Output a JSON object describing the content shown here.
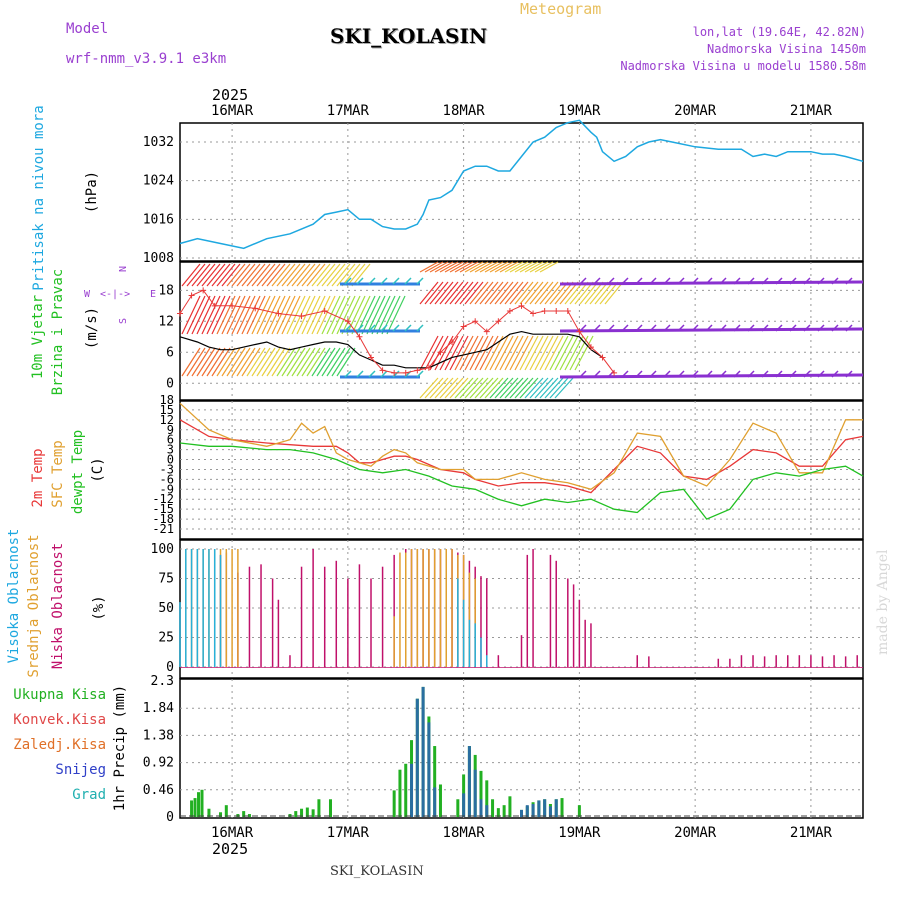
{
  "header": {
    "model_label": "Model",
    "model_name": "wrf-nmm_v3.9.1 e3km",
    "title": "Meteogram",
    "station": "SKI_KOLASIN",
    "lonlat": "lon,lat (19.64E, 42.82N)",
    "altitude": "Nadmorska Visina 1450m",
    "model_altitude": "Nadmorska Visina u modelu 1580.58m",
    "footer_station": "SKI_KOLASIN",
    "watermark": "made by Angel"
  },
  "colors": {
    "pressure": "#1ea8e0",
    "temp2m": "#e83838",
    "sfc": "#e0a030",
    "dewpt": "#22c022",
    "wind_speed": "#000000",
    "gust": "#e83838",
    "high_cloud": "#28b0d8",
    "mid_cloud": "#e0a030",
    "low_cloud": "#c0106a",
    "total_precip": "#22b022",
    "conv_precip": "#e04848",
    "frz_precip": "#e07028",
    "snow": "#3040c8",
    "graupel": "#20b0b0",
    "purple": "#9a40d0"
  },
  "top_axis": {
    "year": "2025",
    "dates": [
      "16MAR",
      "17MAR",
      "18MAR",
      "19MAR",
      "20MAR",
      "21MAR"
    ]
  },
  "bottom_axis": {
    "year": "2025",
    "dates": [
      "16MAR",
      "17MAR",
      "18MAR",
      "19MAR",
      "20MAR",
      "21MAR"
    ]
  },
  "panels": {
    "pressure": {
      "label": "Pritisak na nivou mora",
      "unit": "(hPa)"
    },
    "wind": {
      "label1": "10m Vjetar",
      "label2": "Brzina i Pravac",
      "unit": "(m/s)",
      "compass_n": "N",
      "compass_w": "W",
      "compass_e": "E",
      "compass_s": "S",
      "compass_arrows": "<-|->"
    },
    "temp": {
      "label1": "2m Temp",
      "label2": "SFC Temp",
      "label3": "dewpt Temp",
      "unit": "(C)"
    },
    "cloud": {
      "label1": "Visoka Oblacnost",
      "label2": "Srednja Oblacnost",
      "label3": "Niska Oblacnost",
      "unit": "(%)"
    },
    "precip": {
      "label": "1hr Precip (mm)",
      "legend": [
        "Ukupna Kisa",
        "Konvek.Kisa",
        "Zaledj.Kisa",
        "Snijeg",
        "Grad"
      ]
    }
  },
  "chart_data": [
    {
      "type": "line",
      "title": "Pritisak na nivou mora",
      "ylabel": "(hPa)",
      "x_unit": "days since 16MAR 00UTC",
      "xlim": [
        -0.45,
        5.45
      ],
      "ylim": [
        1008,
        1038
      ],
      "yticks": [
        "1008",
        "1016",
        "1024",
        "1032"
      ],
      "series": [
        {
          "name": "MSLP",
          "x": [
            -0.45,
            -0.3,
            -0.1,
            0.1,
            0.3,
            0.5,
            0.7,
            0.8,
            0.9,
            1.0,
            1.1,
            1.2,
            1.3,
            1.4,
            1.5,
            1.6,
            1.65,
            1.7,
            1.8,
            1.9,
            2.0,
            2.1,
            2.2,
            2.3,
            2.4,
            2.5,
            2.6,
            2.7,
            2.8,
            2.9,
            3.0,
            3.1,
            3.15,
            3.2,
            3.3,
            3.4,
            3.5,
            3.6,
            3.7,
            3.8,
            4.0,
            4.2,
            4.4,
            4.5,
            4.6,
            4.7,
            4.8,
            4.9,
            5.0,
            5.1,
            5.2,
            5.3,
            5.45
          ],
          "y": [
            1011,
            1012,
            1011,
            1010,
            1012,
            1013,
            1015,
            1017,
            1017.5,
            1018,
            1016,
            1016,
            1014.5,
            1014,
            1014,
            1015,
            1017,
            1020,
            1020.5,
            1022,
            1026,
            1027,
            1027,
            1026,
            1026,
            1029,
            1032,
            1033,
            1035,
            1036,
            1036.5,
            1034,
            1033,
            1030,
            1028,
            1029,
            1031,
            1032,
            1032.5,
            1032,
            1031,
            1030.5,
            1030.5,
            1029,
            1029.5,
            1029,
            1030,
            1030,
            1030,
            1029.5,
            1029.5,
            1029,
            1028
          ]
        }
      ]
    },
    {
      "type": "line",
      "title": "10m Vjetar Brzina i Pravac",
      "ylabel": "(m/s)",
      "x_unit": "days since 16MAR 00UTC",
      "xlim": [
        -0.45,
        5.45
      ],
      "ylim": [
        -1.5,
        20
      ],
      "yticks": [
        "0",
        "6",
        "12",
        "18"
      ],
      "series": [
        {
          "name": "wind speed",
          "x": [
            -0.45,
            -0.3,
            -0.2,
            -0.1,
            0,
            0.1,
            0.2,
            0.3,
            0.4,
            0.5,
            0.6,
            0.7,
            0.8,
            0.9,
            1.0,
            1.1,
            1.2,
            1.25,
            1.3,
            1.4,
            1.5,
            1.55,
            1.6,
            1.7,
            1.8,
            1.9,
            2.0,
            2.1,
            2.2,
            2.3,
            2.4,
            2.5,
            2.6,
            2.7,
            2.8,
            2.9,
            3.0,
            3.1,
            3.2
          ],
          "y": [
            9,
            8,
            7,
            6.5,
            6.5,
            7,
            7.5,
            8,
            7,
            6.5,
            7,
            7.5,
            8,
            8,
            7.5,
            5.5,
            4.5,
            4,
            3.5,
            3.5,
            3,
            3,
            3,
            3,
            4,
            5,
            5.5,
            6,
            6.5,
            8,
            9.5,
            10,
            9.5,
            9.5,
            9.5,
            9.5,
            9,
            6.5,
            5
          ]
        },
        {
          "name": "gust",
          "x": [
            -0.45,
            -0.35,
            -0.25,
            -0.15,
            0,
            0.2,
            0.4,
            0.6,
            0.8,
            1.0,
            1.1,
            1.2,
            1.3,
            1.4,
            1.5,
            1.6,
            1.7,
            1.8,
            1.9,
            2.0,
            2.1,
            2.2,
            2.3,
            2.4,
            2.5,
            2.6,
            2.7,
            2.8,
            2.9,
            3.0,
            3.1,
            3.2,
            3.3
          ],
          "y": [
            13.5,
            17,
            18,
            15,
            15,
            14.5,
            13.5,
            13,
            14,
            12,
            9,
            5,
            2.5,
            2,
            2,
            2.5,
            3,
            6,
            8,
            11,
            12,
            10,
            12,
            14,
            15,
            13.5,
            14,
            14,
            14,
            10,
            7,
            5,
            2
          ]
        }
      ]
    },
    {
      "type": "line",
      "title": "2m Temp / SFC Temp / dewpt Temp",
      "ylabel": "(C)",
      "x_unit": "days since 16MAR 00UTC",
      "xlim": [
        -0.45,
        5.45
      ],
      "ylim": [
        -21,
        18
      ],
      "yticks": [
        "18",
        "15",
        "12",
        "9",
        "6",
        "3",
        "0",
        "-3",
        "-6",
        "-9",
        "-12",
        "-15",
        "-18",
        "-21"
      ],
      "series": [
        {
          "name": "2m Temp",
          "x": [
            -0.45,
            -0.2,
            0,
            0.3,
            0.5,
            0.7,
            0.9,
            1.0,
            1.1,
            1.2,
            1.3,
            1.4,
            1.5,
            1.6,
            1.8,
            2.0,
            2.1,
            2.3,
            2.5,
            2.7,
            2.9,
            3.1,
            3.3,
            3.5,
            3.7,
            3.9,
            4.1,
            4.3,
            4.5,
            4.7,
            4.9,
            5.1,
            5.3,
            5.45
          ],
          "y": [
            12,
            7,
            6,
            5,
            4.5,
            4,
            4,
            2,
            -1,
            -1,
            0,
            1,
            1,
            0,
            -3,
            -4,
            -6,
            -8,
            -7,
            -7,
            -8,
            -10,
            -3,
            4,
            2,
            -5,
            -6,
            -2,
            3,
            2,
            -2,
            -2,
            6,
            7
          ]
        },
        {
          "name": "SFC Temp",
          "x": [
            -0.45,
            -0.2,
            0,
            0.3,
            0.5,
            0.6,
            0.7,
            0.8,
            0.9,
            1.0,
            1.2,
            1.3,
            1.4,
            1.5,
            1.6,
            1.8,
            2.0,
            2.1,
            2.3,
            2.5,
            2.7,
            2.9,
            3.1,
            3.3,
            3.5,
            3.7,
            3.9,
            4.1,
            4.3,
            4.5,
            4.7,
            4.9,
            5.1,
            5.3,
            5.45
          ],
          "y": [
            17,
            9,
            6,
            4,
            6,
            11,
            8,
            10,
            2,
            0,
            -2,
            1,
            3,
            2,
            -1,
            -3,
            -3,
            -6,
            -6,
            -4,
            -6,
            -7,
            -9,
            -4,
            8,
            7,
            -5,
            -8,
            0,
            11,
            8,
            -4,
            -4,
            12,
            12
          ]
        },
        {
          "name": "dewpt Temp",
          "x": [
            -0.45,
            -0.2,
            0,
            0.3,
            0.5,
            0.7,
            0.9,
            1.1,
            1.3,
            1.5,
            1.7,
            1.9,
            2.1,
            2.3,
            2.5,
            2.7,
            2.9,
            3.1,
            3.3,
            3.5,
            3.7,
            3.9,
            4.1,
            4.3,
            4.5,
            4.7,
            4.9,
            5.1,
            5.3,
            5.45
          ],
          "y": [
            5,
            4,
            4,
            3,
            3,
            2,
            0,
            -3,
            -4,
            -3,
            -5,
            -8,
            -9,
            -12,
            -14,
            -12,
            -13,
            -12,
            -15,
            -16,
            -10,
            -9,
            -18,
            -15,
            -6,
            -4,
            -5,
            -3,
            -2,
            -5
          ]
        }
      ]
    },
    {
      "type": "bar",
      "title": "Visoka / Srednja / Niska Oblacnost",
      "ylabel": "(%)",
      "x_unit": "days since 16MAR 00UTC",
      "xlim": [
        -0.45,
        5.45
      ],
      "ylim": [
        0,
        100
      ],
      "yticks": [
        "0",
        "25",
        "50",
        "75",
        "100"
      ],
      "series": [
        {
          "name": "Niska Oblacnost",
          "x": [
            -0.15,
            -0.1,
            -0.05,
            0.05,
            0.15,
            0.25,
            0.35,
            0.4,
            0.5,
            0.6,
            0.7,
            0.8,
            0.9,
            1.0,
            1.1,
            1.2,
            1.3,
            1.4,
            1.5,
            1.55,
            1.6,
            1.65,
            1.7,
            1.75,
            1.8,
            1.85,
            1.9,
            1.95,
            2.0,
            2.05,
            2.1,
            2.15,
            2.2,
            2.3,
            2.5,
            2.55,
            2.6,
            2.75,
            2.8,
            2.9,
            2.95,
            3.0,
            3.05,
            3.1,
            3.5,
            3.6,
            4.2,
            4.3,
            4.4,
            4.5,
            4.6,
            4.7,
            4.8,
            4.9,
            5.0,
            5.1,
            5.2,
            5.3,
            5.4
          ],
          "y": [
            100,
            95,
            97,
            80,
            85,
            87,
            75,
            57,
            10,
            85,
            100,
            85,
            90,
            75,
            87,
            75,
            85,
            95,
            100,
            100,
            100,
            100,
            100,
            100,
            100,
            100,
            100,
            97,
            95,
            90,
            85,
            77,
            75,
            10,
            27,
            95,
            100,
            95,
            90,
            75,
            70,
            57,
            40,
            37,
            10,
            9,
            7,
            7,
            10,
            10,
            9,
            10,
            10,
            10,
            10,
            9,
            10,
            9,
            10
          ]
        },
        {
          "name": "Srednja Oblacnost",
          "x": [
            -0.4,
            -0.35,
            -0.3,
            -0.25,
            -0.2,
            -0.15,
            -0.1,
            -0.05,
            0,
            0.05,
            1.4,
            1.45,
            1.5,
            1.55,
            1.6,
            1.65,
            1.7,
            1.75,
            1.8,
            1.85,
            1.9,
            1.95,
            2.0,
            2.05,
            2.1
          ],
          "y": [
            100,
            100,
            100,
            100,
            100,
            100,
            100,
            100,
            100,
            100,
            43,
            97,
            97,
            100,
            100,
            100,
            100,
            100,
            100,
            100,
            100,
            95,
            95,
            80,
            75
          ]
        },
        {
          "name": "Visoka Oblacnost",
          "x": [
            -0.45,
            -0.4,
            -0.35,
            -0.3,
            -0.25,
            -0.2,
            -0.15,
            -0.1,
            1.95,
            2.0,
            2.05,
            2.1,
            2.15,
            2.2
          ],
          "y": [
            55,
            100,
            100,
            100,
            100,
            100,
            100,
            95,
            75,
            57,
            40,
            37,
            25,
            10
          ]
        }
      ]
    },
    {
      "type": "bar",
      "title": "1hr Precip (mm)",
      "ylabel": "1hr Precip (mm)",
      "x_unit": "days since 16MAR 00UTC",
      "xlim": [
        -0.45,
        5.45
      ],
      "ylim": [
        0,
        2.3
      ],
      "yticks": [
        "0",
        "0.46",
        "0.92",
        "1.38",
        "1.84",
        "2.3"
      ],
      "series": [
        {
          "name": "Ukupna Kisa",
          "x": [
            -0.35,
            -0.32,
            -0.29,
            -0.26,
            -0.2,
            -0.1,
            -0.05,
            0.05,
            0.1,
            0.15,
            0.5,
            0.55,
            0.6,
            0.65,
            0.7,
            0.75,
            0.85,
            1.4,
            1.45,
            1.5,
            1.55,
            1.6,
            1.65,
            1.7,
            1.75,
            1.8,
            1.95,
            2.0,
            2.05,
            2.1,
            2.15,
            2.2,
            2.25,
            2.3,
            2.35,
            2.4,
            2.5,
            2.55,
            2.6,
            2.65,
            2.7,
            2.75,
            2.8,
            2.85,
            3.0
          ],
          "y": [
            0.28,
            0.32,
            0.42,
            0.46,
            0.14,
            0.08,
            0.2,
            0.05,
            0.1,
            0.05,
            0.05,
            0.1,
            0.14,
            0.16,
            0.13,
            0.3,
            0.3,
            0.45,
            0.8,
            0.9,
            1.3,
            2.0,
            2.2,
            1.7,
            1.2,
            0.55,
            0.3,
            0.72,
            1.2,
            1.05,
            0.78,
            0.62,
            0.3,
            0.15,
            0.2,
            0.35,
            0.12,
            0.18,
            0.25,
            0.28,
            0.3,
            0.22,
            0.3,
            0.32,
            0.2
          ]
        },
        {
          "name": "Snijeg",
          "x": [
            1.55,
            1.6,
            1.65,
            1.7,
            1.75,
            2.0,
            2.05,
            2.1,
            2.15,
            2.2,
            2.5,
            2.55,
            2.6,
            2.65,
            2.7,
            2.75,
            2.8
          ],
          "y": [
            0.9,
            2.0,
            2.2,
            1.6,
            0.5,
            0.4,
            1.2,
            0.8,
            0.3,
            0.2,
            0.12,
            0.2,
            0.22,
            0.28,
            0.3,
            0.18,
            0.3
          ]
        }
      ]
    }
  ]
}
